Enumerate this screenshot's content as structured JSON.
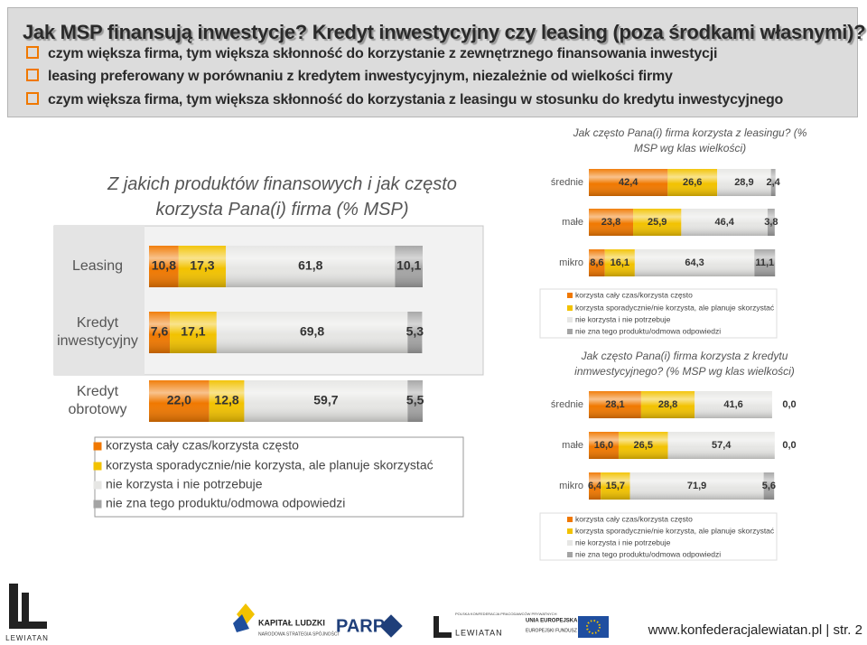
{
  "header": {
    "title": "Jak MSP finansują inwestycje? Kredyt inwestycyjny czy leasing (poza środkami własnymi)?",
    "bullets": [
      "czym większa firma, tym większa skłonność do korzystanie z zewnętrznego finansowania inwestycji",
      "leasing preferowany w porównaniu z kredytem inwestycyjnym, niezależnie od wielkości firmy",
      "czym większa firma, tym większa skłonność do korzystania z leasingu w stosunku do kredytu inwestycyjnego"
    ]
  },
  "chart_data": [
    {
      "type": "bar",
      "orientation": "horizontal",
      "stacked": true,
      "title": "Z jakich produktów finansowych i jak często korzysta Pana(i) firma (% MSP)",
      "categories": [
        "Leasing",
        "Kredyt inwestycyjny",
        "Kredyt obrotowy"
      ],
      "xlim": [
        0,
        100
      ],
      "series": [
        {
          "name": "korzysta cały czas/korzysta często",
          "color": "#f07800",
          "values": [
            10.8,
            7.6,
            22.0
          ],
          "value_labels": [
            "10,8",
            "7,6",
            "22,0"
          ]
        },
        {
          "name": "korzysta sporadycznie/nie korzysta, ale planuje skorzystać",
          "color": "#f2c200",
          "values": [
            17.3,
            17.1,
            12.8
          ],
          "value_labels": [
            "17,3",
            "17,1",
            "12,8"
          ]
        },
        {
          "name": "nie korzysta i nie potrzebuje",
          "color": "#e6e6e4",
          "values": [
            61.8,
            69.8,
            59.7
          ],
          "value_labels": [
            "61,8",
            "69,8",
            "59,7"
          ]
        },
        {
          "name": "nie zna tego produktu/odmowa odpowiedzi",
          "color": "#a4a4a4",
          "values": [
            10.1,
            5.3,
            5.5
          ],
          "value_labels": [
            "10,1",
            "5,3",
            "5,5"
          ]
        }
      ]
    },
    {
      "type": "bar",
      "orientation": "horizontal",
      "stacked": true,
      "title": "Jak często Pana(i) firma korzysta z leasingu? (% MSP wg klas wielkości)",
      "categories": [
        "średnie",
        "małe",
        "mikro"
      ],
      "xlim": [
        0,
        100
      ],
      "series": [
        {
          "name": "korzysta cały czas/korzysta często",
          "color": "#f07800",
          "values": [
            42.4,
            23.8,
            8.6
          ],
          "value_labels": [
            "42,4",
            "23,8",
            "8,6"
          ]
        },
        {
          "name": "korzysta sporadycznie/nie korzysta, ale planuje skorzystać",
          "color": "#f2c200",
          "values": [
            26.6,
            25.9,
            16.1
          ],
          "value_labels": [
            "26,6",
            "25,9",
            "16,1"
          ]
        },
        {
          "name": "nie korzysta i nie potrzebuje",
          "color": "#e6e6e4",
          "values": [
            28.9,
            46.4,
            64.3
          ],
          "value_labels": [
            "28,9",
            "46,4",
            "64,3"
          ]
        },
        {
          "name": "nie zna tego produktu/odmowa odpowiedzi",
          "color": "#a4a4a4",
          "values": [
            2.4,
            3.8,
            11.1
          ],
          "value_labels": [
            "2,4",
            "3,8",
            "11,1"
          ]
        }
      ]
    },
    {
      "type": "bar",
      "orientation": "horizontal",
      "stacked": true,
      "title": "Jak często Pana(i) firma korzysta z kredytu inmwestycyjnego? (% MSP wg klas wielkości)",
      "categories": [
        "średnie",
        "małe",
        "mikro"
      ],
      "xlim": [
        0,
        100
      ],
      "series": [
        {
          "name": "korzysta cały czas/korzysta często",
          "color": "#f07800",
          "values": [
            28.1,
            16.0,
            6.4
          ],
          "value_labels": [
            "28,1",
            "16,0",
            "6,4"
          ]
        },
        {
          "name": "korzysta sporadycznie/nie korzysta, ale planuje skorzystać",
          "color": "#f2c200",
          "values": [
            28.8,
            26.5,
            15.7
          ],
          "value_labels": [
            "28,8",
            "26,5",
            "15,7"
          ]
        },
        {
          "name": "nie korzysta i nie potrzebuje",
          "color": "#e6e6e4",
          "values": [
            41.6,
            57.4,
            71.9
          ],
          "value_labels": [
            "41,6",
            "57,4",
            "71,9"
          ]
        },
        {
          "name": "nie zna tego produktu/odmowa odpowiedzi",
          "color": "#a4a4a4",
          "values": [
            0.0,
            0.0,
            5.6
          ],
          "value_labels": [
            "0,0",
            "0,0",
            "5,6"
          ]
        }
      ]
    }
  ],
  "footer": {
    "url": "www.konfederacjalewiatan.pl | str. 2",
    "logo_left": "LEWIATAN",
    "kl_title": "KAPITAŁ LUDZKI",
    "kl_sub": "NARODOWA STRATEGIA SPÓJNOŚCI",
    "parp": "PARP",
    "pkpp": "POLSKA KONFEDERACJA PRACODAWCÓW PRYWATNYCH",
    "pkpp_name": "LEWIATAN",
    "ue1": "UNIA EUROPEJSKA",
    "ue2": "EUROPEJSKI FUNDUSZ SPOŁECZNY"
  }
}
